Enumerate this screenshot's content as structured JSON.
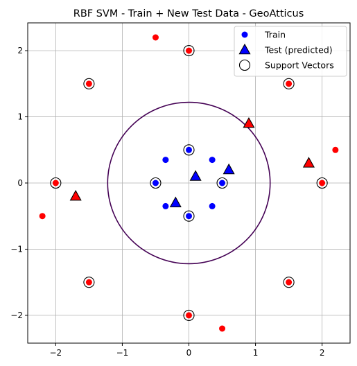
{
  "chart_data": {
    "type": "scatter",
    "title": "RBF SVM - Train + New Test Data - GeoAtticus",
    "xlabel": "",
    "ylabel": "",
    "xlim": [
      -2.42,
      2.42
    ],
    "ylim": [
      -2.42,
      2.42
    ],
    "xticks": [
      -2,
      -1,
      0,
      1,
      2
    ],
    "yticks": [
      -2,
      -1,
      0,
      1,
      2
    ],
    "xtick_labels": [
      "−2",
      "−1",
      "0",
      "1",
      "2"
    ],
    "ytick_labels": [
      "−2",
      "−1",
      "0",
      "1",
      "2"
    ],
    "grid": true,
    "legend_position": "top-right",
    "legend": [
      {
        "label": "Train",
        "marker": "circle",
        "color": "#0000ff"
      },
      {
        "label": "Test (predicted)",
        "marker": "triangle",
        "color": "#0000ff"
      },
      {
        "label": "Support Vectors",
        "marker": "open-circle",
        "color": "#000000"
      }
    ],
    "colors": {
      "class_a": "#0000ff",
      "class_b": "#ff0000",
      "boundary": "#440154",
      "grid": "#b0b0b0"
    },
    "train_points": [
      {
        "x": -0.5,
        "y": 2.2,
        "class": "red"
      },
      {
        "x": 0,
        "y": 2,
        "class": "red"
      },
      {
        "x": -1.5,
        "y": 1.5,
        "class": "red"
      },
      {
        "x": 1.5,
        "y": 1.5,
        "class": "red"
      },
      {
        "x": 2.2,
        "y": 0.5,
        "class": "red"
      },
      {
        "x": -2,
        "y": 0,
        "class": "red"
      },
      {
        "x": 2,
        "y": 0,
        "class": "red"
      },
      {
        "x": -2.2,
        "y": -0.5,
        "class": "red"
      },
      {
        "x": -1.5,
        "y": -1.5,
        "class": "red"
      },
      {
        "x": 1.5,
        "y": -1.5,
        "class": "red"
      },
      {
        "x": 0,
        "y": -2,
        "class": "red"
      },
      {
        "x": 0.5,
        "y": -2.2,
        "class": "red"
      },
      {
        "x": 0,
        "y": 0.5,
        "class": "blue"
      },
      {
        "x": -0.35,
        "y": 0.35,
        "class": "blue"
      },
      {
        "x": 0.35,
        "y": 0.35,
        "class": "blue"
      },
      {
        "x": -0.5,
        "y": 0,
        "class": "blue"
      },
      {
        "x": 0.5,
        "y": 0,
        "class": "blue"
      },
      {
        "x": -0.35,
        "y": -0.35,
        "class": "blue"
      },
      {
        "x": 0.35,
        "y": -0.35,
        "class": "blue"
      },
      {
        "x": 0,
        "y": -0.5,
        "class": "blue"
      }
    ],
    "test_points": [
      {
        "x": 0.9,
        "y": 0.9,
        "class": "red"
      },
      {
        "x": 1.8,
        "y": 0.3,
        "class": "red"
      },
      {
        "x": -1.7,
        "y": -0.2,
        "class": "red"
      },
      {
        "x": 0.1,
        "y": 0.1,
        "class": "blue"
      },
      {
        "x": 0.6,
        "y": 0.2,
        "class": "blue"
      },
      {
        "x": -0.2,
        "y": -0.3,
        "class": "blue"
      }
    ],
    "support_vectors": [
      {
        "x": 0,
        "y": 2
      },
      {
        "x": -1.5,
        "y": 1.5
      },
      {
        "x": 1.5,
        "y": 1.5
      },
      {
        "x": -2,
        "y": 0
      },
      {
        "x": 2,
        "y": 0
      },
      {
        "x": -1.5,
        "y": -1.5
      },
      {
        "x": 1.5,
        "y": -1.5
      },
      {
        "x": 0,
        "y": -2
      },
      {
        "x": 0,
        "y": 0.5
      },
      {
        "x": -0.5,
        "y": 0
      },
      {
        "x": 0.5,
        "y": 0
      },
      {
        "x": 0,
        "y": -0.5
      }
    ],
    "decision_boundary": {
      "shape": "circle",
      "center": [
        0,
        0
      ],
      "radius": 1.22
    }
  }
}
